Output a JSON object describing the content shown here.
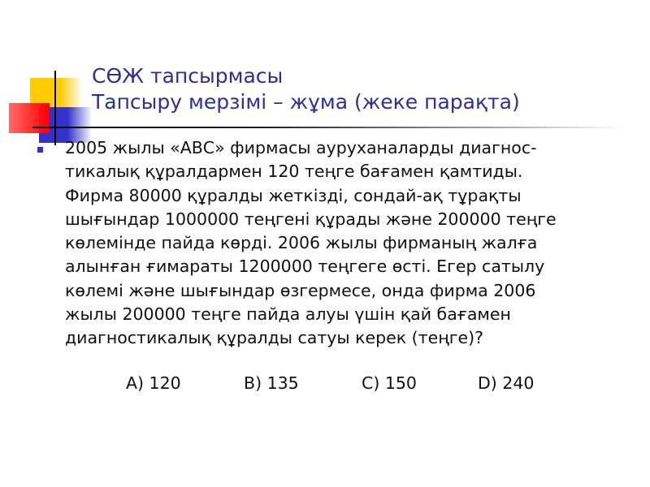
{
  "slide": {
    "title_lines": [
      "СӨЖ тапсырмасы",
      "Тапсыру мерзімі – жұма (жеке парақта)"
    ],
    "body_lines": [
      "2005 жылы «АВС» фирмасы ауруханаларды диагнос-",
      "тикалық құралдармен 120 теңге бағамен қамтиды.",
      "Фирма 80000 құралды жеткізді, сондай-ақ тұрақты",
      "шығындар 1000000 теңгені құрады және 200000 теңге",
      "көлемінде пайда көрді. 2006 жылы фирманың жалға",
      "алынған ғимараты 1200000 теңгеге өсті. Егер сатылу",
      "көлемі және шығындар өзгермесе, онда фирма 2006",
      "жылы 200000 теңге пайда алуы үшін қай бағамен",
      "диагностикалық құралды сатуы керек (теңге)?"
    ],
    "answers": [
      "A) 120",
      "B) 135",
      "C) 150",
      "D) 240"
    ],
    "colors": {
      "title": "#2e2e96",
      "bullet": "#3333cc",
      "yellow": "#ffcc00",
      "red": "#ff0000",
      "blue": "#3333cc"
    }
  }
}
